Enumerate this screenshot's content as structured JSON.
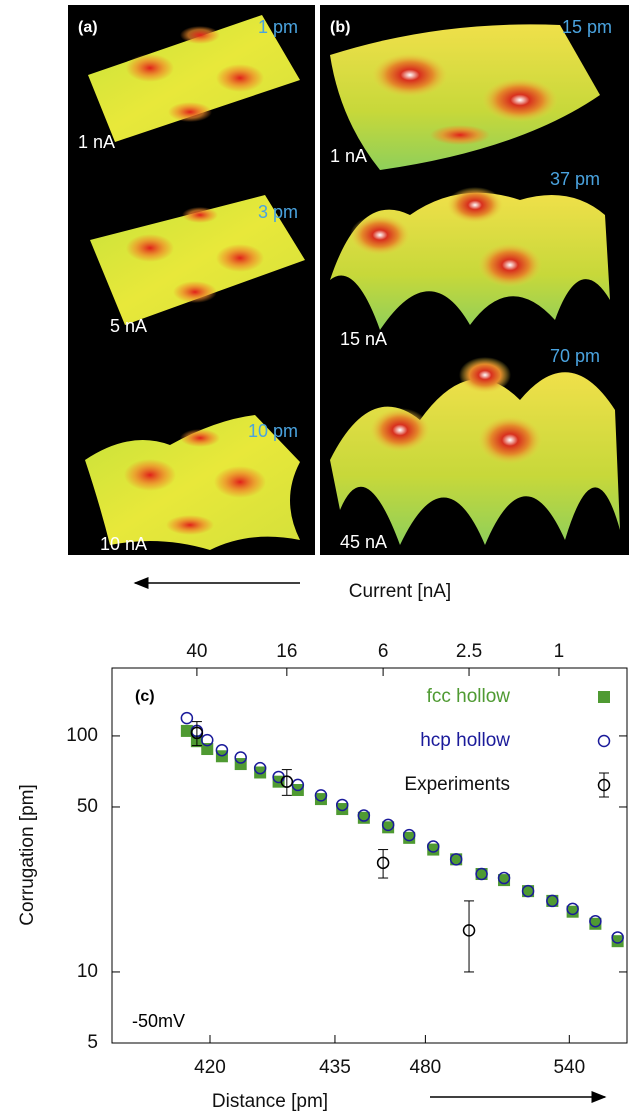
{
  "panels": [
    {
      "label": "(a)",
      "surfaces": [
        {
          "height": "1 pm",
          "current": "1 nA"
        },
        {
          "height": "3 pm",
          "current": "5 nA"
        },
        {
          "height": "10 pm",
          "current": "10 nA"
        }
      ]
    },
    {
      "label": "(b)",
      "surfaces": [
        {
          "height": "15 pm",
          "current": "1 nA"
        },
        {
          "height": "37 pm",
          "current": "15 nA"
        },
        {
          "height": "70 pm",
          "current": "45 nA"
        }
      ]
    }
  ],
  "current_axis_label": "Current [nA]",
  "chart_data": {
    "type": "scatter",
    "panel_label": "(c)",
    "annotation": "-50mV",
    "ylabel": "Corrugation [pm]",
    "x2label": "Distance [pm]",
    "yscale": "log",
    "xscale": "log",
    "ylim": [
      5,
      194
    ],
    "yticks": [
      5,
      10,
      50,
      100
    ],
    "xlim": [
      95,
      0.5
    ],
    "xticks": [
      40,
      16,
      6,
      2.5,
      1
    ],
    "x2ticks": [
      {
        "value": 35,
        "label": "420"
      },
      {
        "value": 9.8,
        "label": "435"
      },
      {
        "value": 3.9,
        "label": "480"
      },
      {
        "value": 0.9,
        "label": "540"
      }
    ],
    "series": [
      {
        "name": "fcc hollow",
        "color": "#4f9a32",
        "marker": "square",
        "x": [
          44.3,
          40,
          36,
          31,
          25.6,
          21,
          17.4,
          14.3,
          11.3,
          9.1,
          7.3,
          5.7,
          4.6,
          3.6,
          2.85,
          2.2,
          1.75,
          1.37,
          1.07,
          0.87,
          0.69,
          0.55
        ],
        "values": [
          105,
          95,
          88,
          82,
          76,
          70,
          64,
          59,
          54,
          49,
          45,
          41,
          37,
          33,
          30,
          26,
          24.5,
          22,
          20,
          18,
          16,
          13.5
        ]
      },
      {
        "name": "hcp hollow",
        "color": "#1a1a9a",
        "marker": "circle",
        "x": [
          44.3,
          40,
          36,
          31,
          25.6,
          21,
          17.4,
          14.3,
          11.3,
          9.1,
          7.3,
          5.7,
          4.6,
          3.6,
          2.85,
          2.2,
          1.75,
          1.37,
          1.07,
          0.87,
          0.69,
          0.55
        ],
        "values": [
          119,
          105,
          96,
          87,
          81,
          73,
          67,
          62,
          56,
          51,
          46,
          42,
          38,
          34,
          30,
          26,
          25,
          22,
          20,
          18.5,
          16.4,
          14
        ]
      },
      {
        "name": "Experiments",
        "color": "#000000",
        "marker": "errorbar",
        "x": [
          40,
          16,
          6,
          2.5
        ],
        "values": [
          103,
          64,
          29,
          15
        ],
        "errors": [
          12,
          8,
          4,
          5
        ]
      }
    ]
  }
}
